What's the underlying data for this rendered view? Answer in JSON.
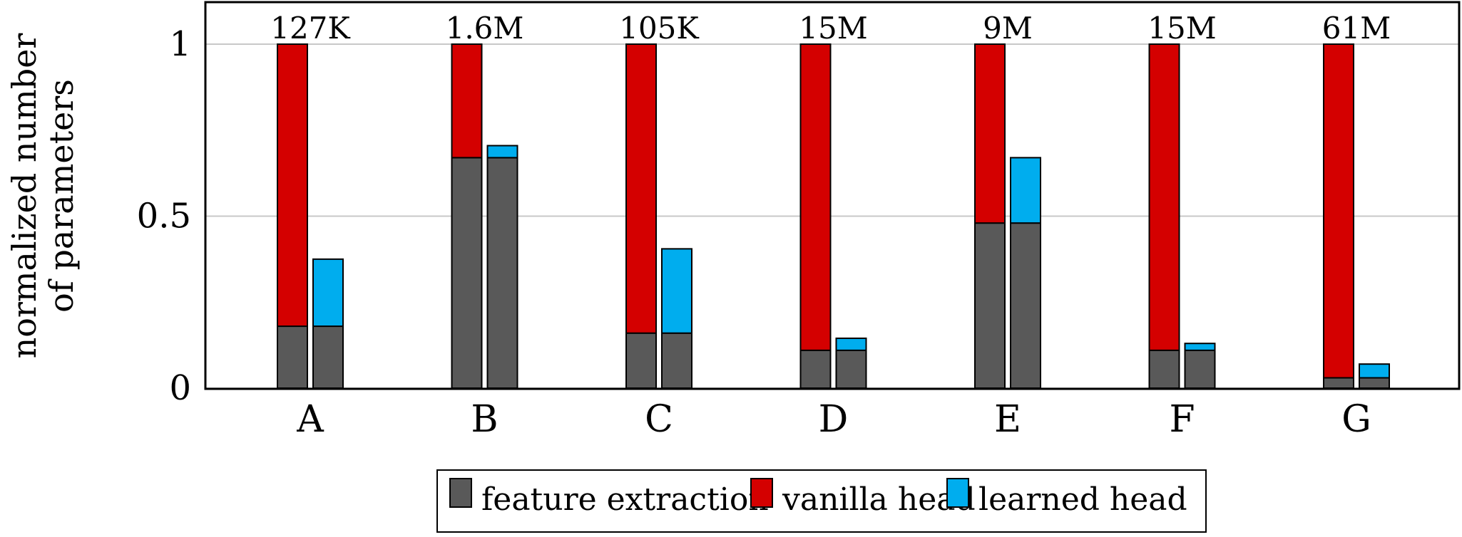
{
  "chart_data": {
    "type": "bar",
    "ylabel_lines": [
      "normalized number",
      "of parameters"
    ],
    "categories": [
      "A",
      "B",
      "C",
      "D",
      "E",
      "F",
      "G"
    ],
    "top_labels": [
      "127K",
      "1.6M",
      "105K",
      "15M",
      "9M",
      "15M",
      "61M"
    ],
    "ylim": [
      0,
      1.1
    ],
    "yticks": [
      0,
      0.5,
      1
    ],
    "ytick_labels": [
      "0",
      "0.5",
      "1"
    ],
    "grid": true,
    "legend_position": "bottom-center",
    "stack_groups": [
      "vanilla",
      "learned"
    ],
    "series": [
      {
        "name": "feature extraction",
        "key": "feature",
        "color": "#595959",
        "stack": "both",
        "values": [
          0.18,
          0.67,
          0.16,
          0.11,
          0.48,
          0.11,
          0.03
        ]
      },
      {
        "name": "vanilla head",
        "key": "vanilla",
        "color": "#d40000",
        "stack": "vanilla",
        "values": [
          0.82,
          0.33,
          0.84,
          0.89,
          0.52,
          0.89,
          0.97
        ]
      },
      {
        "name": "learned head",
        "key": "learned",
        "color": "#00adee",
        "stack": "learned",
        "values": [
          0.195,
          0.035,
          0.245,
          0.035,
          0.19,
          0.02,
          0.04
        ]
      }
    ]
  }
}
